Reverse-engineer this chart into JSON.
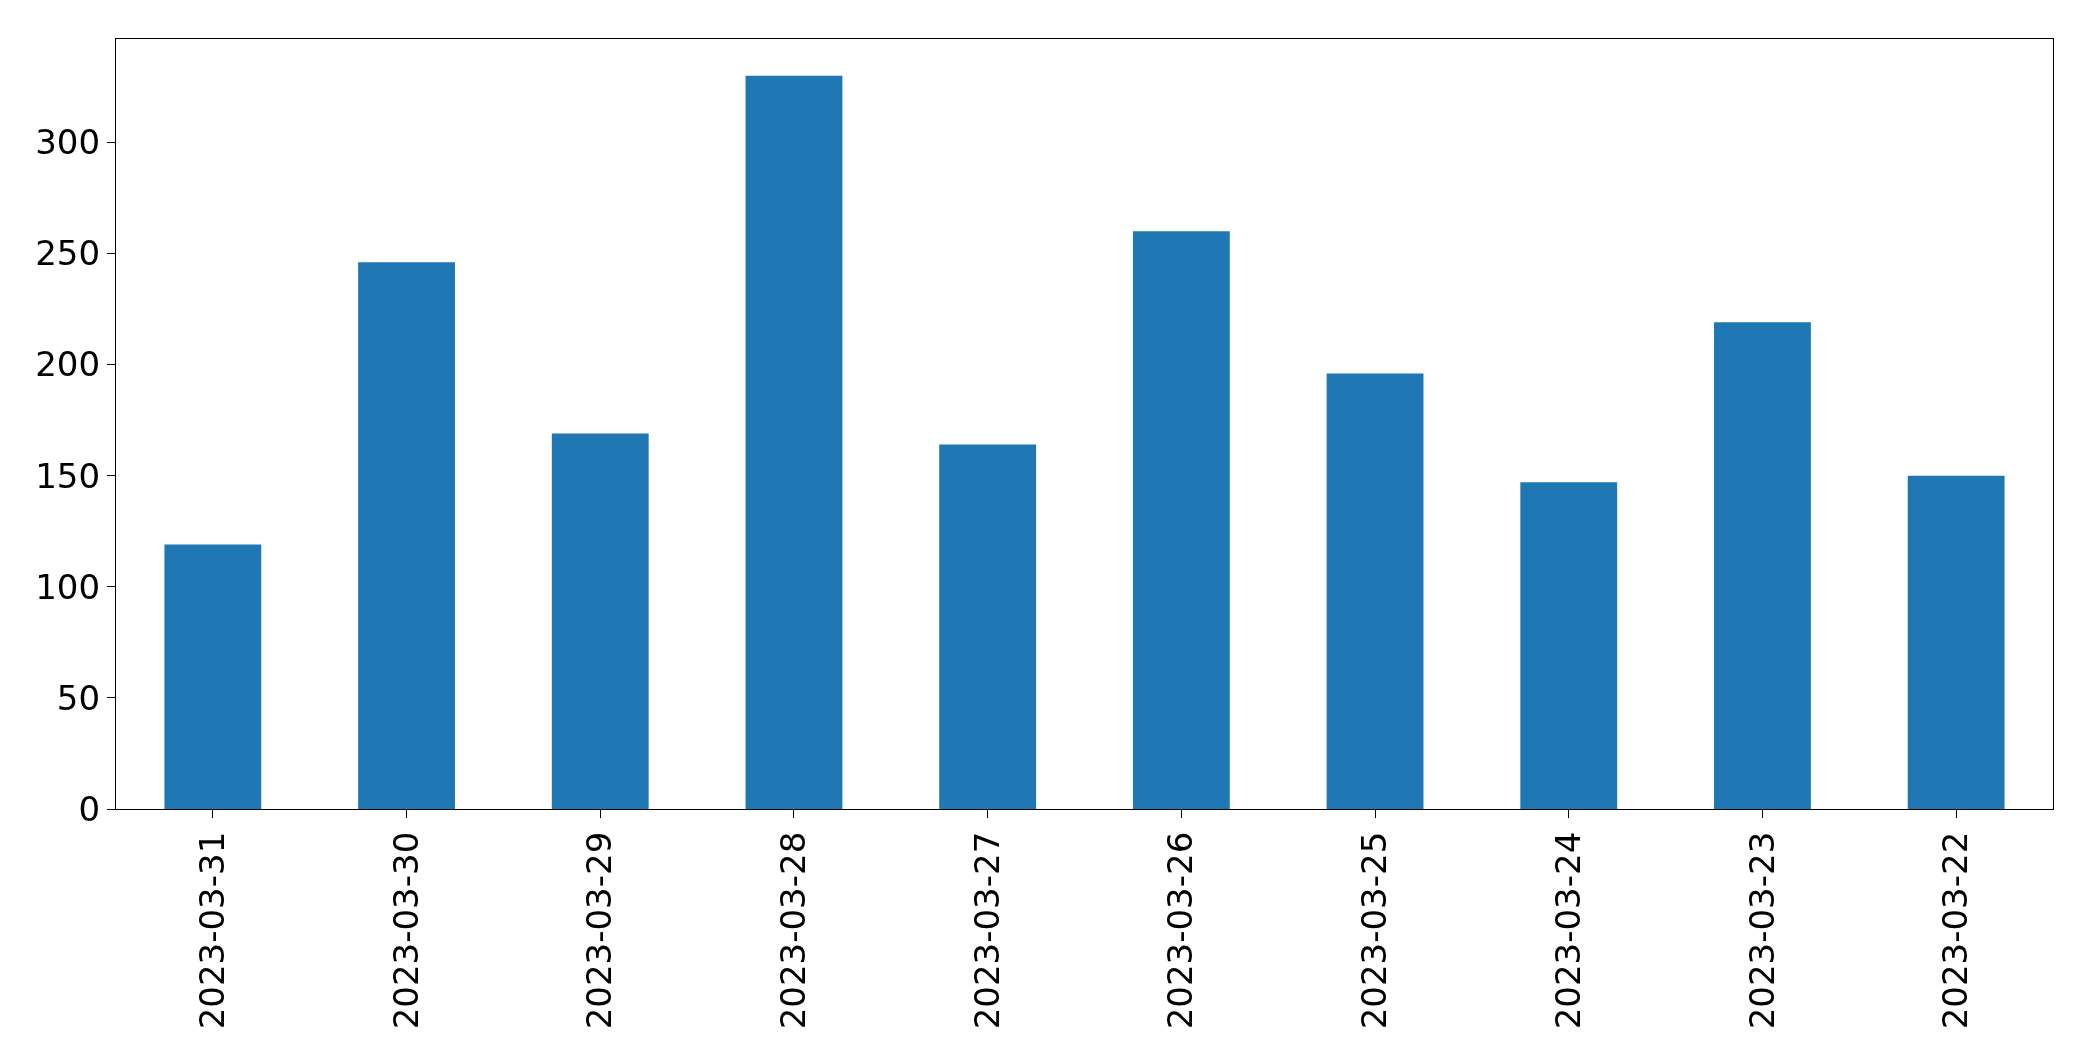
{
  "chart_data": {
    "type": "bar",
    "categories": [
      "2023-03-31",
      "2023-03-30",
      "2023-03-29",
      "2023-03-28",
      "2023-03-27",
      "2023-03-26",
      "2023-03-25",
      "2023-03-24",
      "2023-03-23",
      "2023-03-22"
    ],
    "values": [
      119,
      246,
      169,
      330,
      164,
      260,
      196,
      147,
      219,
      150
    ],
    "color": "#1f77b4",
    "ylim": [
      0,
      346.5
    ],
    "yticks": [
      0,
      50,
      100,
      150,
      200,
      250,
      300
    ]
  }
}
